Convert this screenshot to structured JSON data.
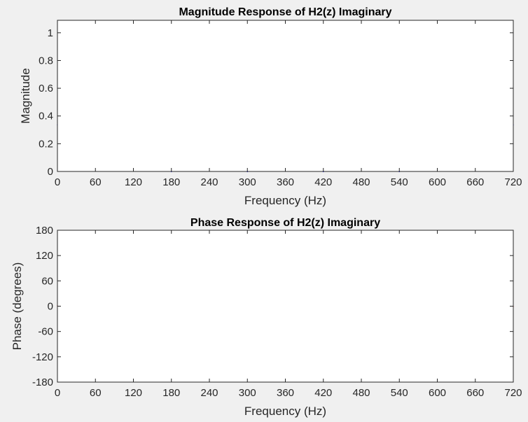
{
  "chart_data": [
    {
      "type": "line",
      "title": "Magnitude Response of H2(z) Imaginary",
      "xlabel": "Frequency (Hz)",
      "ylabel": "Magnitude",
      "xlim": [
        0,
        720
      ],
      "ylim": [
        0,
        1.09
      ],
      "xticks": [
        0,
        60,
        120,
        180,
        240,
        300,
        360,
        420,
        480,
        540,
        600,
        660,
        720
      ],
      "xtick_labels": [
        "0",
        "60",
        "120",
        "180",
        "240",
        "300",
        "360",
        "420",
        "480",
        "540",
        "600",
        "660",
        "720"
      ],
      "yticks": [
        0,
        0.2,
        0.4,
        0.6,
        0.8,
        1
      ],
      "ytick_labels": [
        "0",
        "0.2",
        "0.4",
        "0.6",
        "0.8",
        "1"
      ],
      "grid": true,
      "color": "#0000ff",
      "series": [
        {
          "x": [
            0,
            10,
            20,
            30,
            40,
            50,
            60,
            70,
            80,
            90,
            100,
            110,
            120,
            130,
            140,
            150,
            160,
            170,
            180,
            190,
            200,
            210,
            220,
            230,
            240,
            250,
            260,
            270,
            280,
            290,
            300,
            310,
            320,
            330,
            340,
            350,
            360,
            370,
            380,
            390,
            400,
            410,
            420,
            430,
            440,
            450,
            460,
            470,
            480,
            490,
            500,
            510,
            520,
            530,
            540,
            550,
            560,
            570,
            580,
            590,
            600,
            610,
            620,
            630,
            640,
            650,
            660,
            670,
            680,
            690,
            700,
            710,
            720
          ],
          "y": [
            0.333,
            0.407,
            0.576,
            0.755,
            0.909,
            1.021,
            1.079,
            1.075,
            1.011,
            0.891,
            0.728,
            0.537,
            0.333,
            0.132,
            0.052,
            0.229,
            0.377,
            0.478,
            0.0,
            0.109,
            0.228,
            0.324,
            0.383,
            0.398,
            0.368,
            0.298,
            0.198,
            0.081,
            0.038,
            0.149,
            0.0,
            0.066,
            0.166,
            0.247,
            0.303,
            0.329,
            0.333,
            0.329,
            0.303,
            0.247,
            0.166,
            0.066,
            0.0,
            0.149,
            0.038,
            0.081,
            0.198,
            0.298,
            0.368,
            0.398,
            0.383,
            0.324,
            0.228,
            0.109,
            0.0,
            0.478,
            0.377,
            0.229,
            0.052,
            0.132,
            0.333,
            0.537,
            0.728,
            0.891,
            1.011,
            1.075,
            1.079,
            1.021,
            0.909,
            0.755,
            0.576,
            0.407,
            0.333
          ]
        }
      ]
    },
    {
      "type": "line",
      "title": "Phase Response of H2(z) Imaginary",
      "xlabel": "Frequency (Hz)",
      "ylabel": "Phase (degrees)",
      "xlim": [
        0,
        720
      ],
      "ylim": [
        -180,
        180
      ],
      "xticks": [
        0,
        60,
        120,
        180,
        240,
        300,
        360,
        420,
        480,
        540,
        600,
        660,
        720
      ],
      "xtick_labels": [
        "0",
        "60",
        "120",
        "180",
        "240",
        "300",
        "360",
        "420",
        "480",
        "540",
        "600",
        "660",
        "720"
      ],
      "yticks": [
        -180,
        -120,
        -60,
        0,
        60,
        120,
        180
      ],
      "ytick_labels": [
        "-180",
        "-120",
        "-60",
        "0",
        "60",
        "120",
        "180"
      ],
      "grid": true,
      "color": "#ff0000",
      "series": [
        {
          "x": [
            0,
            5,
            10,
            15,
            20,
            25,
            30,
            40,
            50,
            60,
            70,
            80,
            90,
            100,
            110,
            120,
            130,
            140,
            150,
            160,
            170,
            179.5,
            180,
            180.5,
            190,
            200,
            210,
            220,
            230,
            240,
            250,
            260,
            270,
            280,
            290,
            299.5,
            300,
            300.5,
            310,
            320,
            330,
            340,
            350,
            360,
            370,
            380,
            390,
            400,
            410,
            419.5,
            420,
            420.5,
            430,
            440,
            450,
            460,
            470,
            480,
            490,
            500,
            510,
            520,
            530,
            539.5,
            540,
            540.5,
            550,
            560,
            570,
            580,
            590,
            600,
            610,
            620,
            630,
            640,
            650,
            660,
            670,
            680,
            690,
            695,
            700,
            705,
            710,
            715,
            720
          ],
          "y": [
            0,
            14,
            21,
            25,
            26,
            26,
            24,
            17,
            8,
            -3,
            -14,
            -25,
            -36,
            -47,
            -57,
            -68,
            -79,
            -90,
            -101,
            -112,
            -124,
            -137,
            40,
            40,
            29,
            18,
            7,
            -5,
            -16,
            -27,
            -38,
            -49,
            -60,
            -71,
            -82,
            -106,
            72,
            72,
            62,
            51,
            40,
            29,
            18,
            7,
            -4,
            -15,
            -26,
            -37,
            -48,
            -71,
            104,
            104,
            93,
            82,
            71,
            60,
            49,
            38,
            27,
            15,
            4,
            -7,
            -18,
            -39,
            138,
            138,
            127,
            116,
            105,
            94,
            83,
            72,
            61,
            50,
            39,
            28,
            18,
            8,
            -1,
            -11,
            -18,
            -23,
            -24,
            -24,
            -22,
            -16,
            0
          ]
        }
      ]
    }
  ]
}
